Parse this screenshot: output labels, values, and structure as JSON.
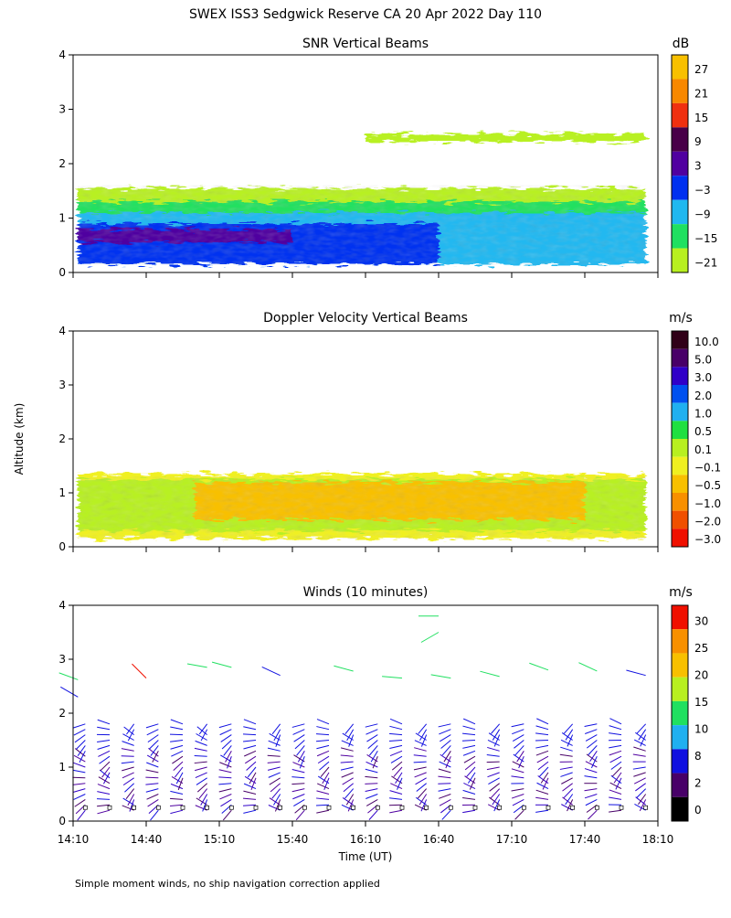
{
  "title": "SWEX ISS3 Sedgwick Reserve CA  20 Apr 2022 Day 110",
  "footer_note": "Simple moment winds, no ship navigation correction applied",
  "shared_axes": {
    "ylabel": "Altitude (km)",
    "xlabel": "Time (UT)",
    "xlim_minutes_utc": [
      850,
      1090
    ],
    "x_tick_labels": [
      "14:10",
      "14:40",
      "15:10",
      "15:40",
      "16:10",
      "16:40",
      "17:10",
      "17:40",
      "18:10"
    ],
    "ylim_km": [
      0,
      4
    ],
    "y_ticks": [
      0,
      1,
      2,
      3,
      4
    ]
  },
  "chart_data": [
    {
      "type": "heatmap",
      "title": "SNR Vertical Beams",
      "colorbar": {
        "unit": "dB",
        "labels": [
          "27",
          "21",
          "15",
          "9",
          "3",
          "−3",
          "−9",
          "−15",
          "−21"
        ],
        "colors": [
          "#f8c000",
          "#f88800",
          "#f03010",
          "#480048",
          "#5000a0",
          "#0030f0",
          "#20b8f0",
          "#20e060",
          "#b8f020"
        ]
      },
      "layers": [
        {
          "band": "noise",
          "alt_top_km": 2.55,
          "alt_bottom_km": 2.4,
          "t0": 970,
          "t1": 1085,
          "color": "#b8f020"
        },
        {
          "band": "low",
          "alt_top_km": 1.55,
          "alt_bottom_km": 1.2,
          "t0": 852,
          "t1": 1085,
          "color": "#b8f020"
        },
        {
          "band": "mid",
          "alt_top_km": 1.3,
          "alt_bottom_km": 1.0,
          "t0": 852,
          "t1": 1085,
          "color": "#20e060"
        },
        {
          "band": "core",
          "alt_top_km": 1.1,
          "alt_bottom_km": 0.15,
          "t0": 852,
          "t1": 1085,
          "color": "#20b8f0"
        },
        {
          "band": "strong",
          "alt_top_km": 0.9,
          "alt_bottom_km": 0.15,
          "t0": 852,
          "t1": 1000,
          "color": "#0030f0"
        },
        {
          "band": "peak",
          "alt_top_km": 0.8,
          "alt_bottom_km": 0.55,
          "t0": 852,
          "t1": 940,
          "color": "#5000a0"
        }
      ]
    },
    {
      "type": "heatmap",
      "title": "Doppler Velocity Vertical Beams",
      "colorbar": {
        "unit": "m/s",
        "labels": [
          "10.0",
          "5.0",
          "3.0",
          "2.0",
          "1.0",
          "0.5",
          "0.1",
          "−0.1",
          "−0.5",
          "−1.0",
          "−2.0",
          "−3.0"
        ],
        "colors": [
          "#300018",
          "#480068",
          "#3000c8",
          "#0050f0",
          "#20b0f0",
          "#20e040",
          "#b8f020",
          "#f0f020",
          "#f8c000",
          "#f89000",
          "#f05000",
          "#f01000"
        ]
      },
      "layers": [
        {
          "band": "top",
          "alt_top_km": 1.35,
          "alt_bottom_km": 0.15,
          "t0": 852,
          "t1": 1085,
          "color": "#f0f020"
        },
        {
          "band": "mix",
          "alt_top_km": 1.25,
          "alt_bottom_km": 0.3,
          "t0": 852,
          "t1": 1085,
          "color": "#b8f020"
        },
        {
          "band": "down",
          "alt_top_km": 1.2,
          "alt_bottom_km": 0.5,
          "t0": 900,
          "t1": 1060,
          "color": "#f8c000"
        }
      ]
    },
    {
      "type": "wind_barbs",
      "title": "Winds (10 minutes)",
      "colorbar": {
        "unit": "m/s",
        "labels": [
          "30",
          "25",
          "20",
          "15",
          "10",
          "8",
          "2",
          "0"
        ],
        "colors": [
          "#f01000",
          "#f89000",
          "#f8c000",
          "#b8f020",
          "#20e060",
          "#20b0f0",
          "#1010e0",
          "#480068",
          "#000000"
        ]
      },
      "profiles_utc_minutes": [
        855,
        865,
        875,
        885,
        895,
        905,
        915,
        925,
        935,
        945,
        955,
        965,
        975,
        985,
        995,
        1005,
        1015,
        1025,
        1035,
        1045,
        1055,
        1065,
        1075,
        1085
      ],
      "upper_barbs": [
        {
          "t": 852,
          "alt_km": 2.62,
          "dir_deg": 290,
          "speed_ms": 15
        },
        {
          "t": 852,
          "alt_km": 2.3,
          "dir_deg": 300,
          "speed_ms": 8
        },
        {
          "t": 880,
          "alt_km": 2.65,
          "dir_deg": 315,
          "speed_ms": 28
        },
        {
          "t": 905,
          "alt_km": 2.85,
          "dir_deg": 280,
          "speed_ms": 15
        },
        {
          "t": 915,
          "alt_km": 2.85,
          "dir_deg": 285,
          "speed_ms": 15
        },
        {
          "t": 935,
          "alt_km": 2.7,
          "dir_deg": 295,
          "speed_ms": 8
        },
        {
          "t": 965,
          "alt_km": 2.78,
          "dir_deg": 285,
          "speed_ms": 15
        },
        {
          "t": 985,
          "alt_km": 2.65,
          "dir_deg": 275,
          "speed_ms": 15
        },
        {
          "t": 1005,
          "alt_km": 2.65,
          "dir_deg": 280,
          "speed_ms": 15
        },
        {
          "t": 1025,
          "alt_km": 2.68,
          "dir_deg": 285,
          "speed_ms": 15
        },
        {
          "t": 1045,
          "alt_km": 2.8,
          "dir_deg": 290,
          "speed_ms": 15
        },
        {
          "t": 1065,
          "alt_km": 2.78,
          "dir_deg": 295,
          "speed_ms": 15
        },
        {
          "t": 1085,
          "alt_km": 2.7,
          "dir_deg": 285,
          "speed_ms": 8
        },
        {
          "t": 1000,
          "alt_km": 3.8,
          "dir_deg": 270,
          "speed_ms": 15
        },
        {
          "t": 1000,
          "alt_km": 3.5,
          "dir_deg": 240,
          "speed_ms": 15
        }
      ]
    }
  ]
}
